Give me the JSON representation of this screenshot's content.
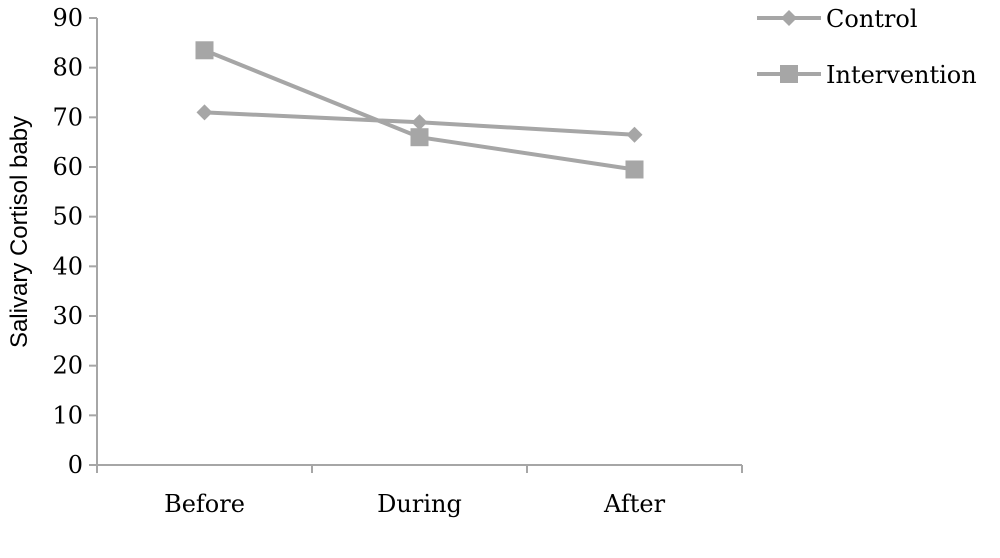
{
  "chart_data": {
    "type": "line",
    "categories": [
      "Before",
      "During",
      "After"
    ],
    "series": [
      {
        "name": "Control",
        "values": [
          71,
          69,
          66.5
        ],
        "marker": "diamond",
        "color": "#a6a6a6"
      },
      {
        "name": "Intervention",
        "values": [
          83.5,
          66,
          59.5
        ],
        "marker": "square",
        "color": "#a6a6a6"
      }
    ],
    "title": "",
    "xlabel": "",
    "ylabel": "Salivary Cortisol baby",
    "ylim": [
      0,
      90
    ],
    "yticks": [
      "0",
      "10",
      "20",
      "30",
      "40",
      "50",
      "60",
      "70",
      "80",
      "90"
    ],
    "grid": false,
    "legend_position": "top-right",
    "axis_color": "#a6a6a6"
  }
}
